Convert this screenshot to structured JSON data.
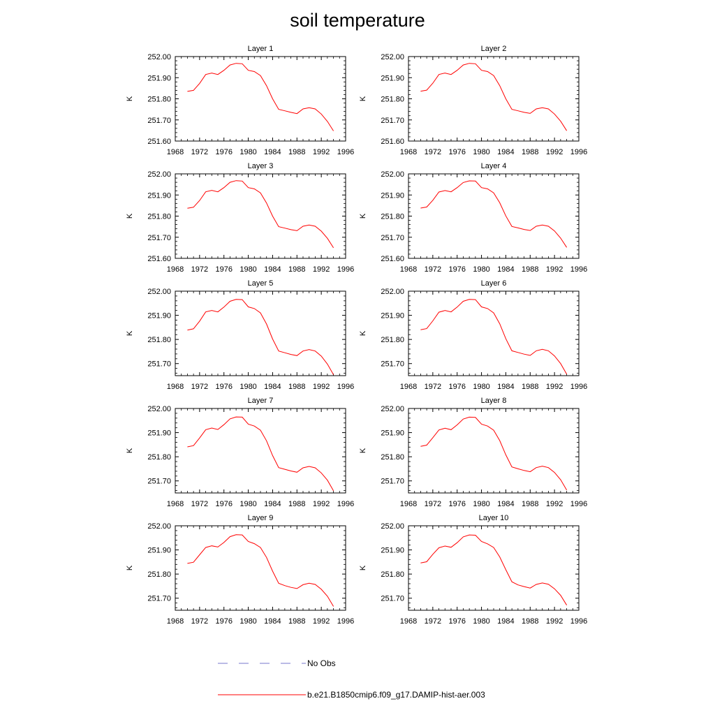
{
  "page": {
    "title": "soil temperature"
  },
  "legend": {
    "items": [
      {
        "label": "No Obs",
        "color": "#7777cc",
        "style": "dashed"
      },
      {
        "label": "b.e21.B1850cmip6.f09_g17.DAMIP-hist-aer.003",
        "color": "#ff0000",
        "style": "solid"
      }
    ]
  },
  "chart_data": [
    {
      "type": "line",
      "title": "Layer 1",
      "ylabel": "K",
      "xlim": [
        1968,
        1996
      ],
      "ylim": [
        251.6,
        252.0
      ],
      "xticks": [
        1968,
        1972,
        1976,
        1980,
        1984,
        1988,
        1992,
        1996
      ],
      "yticks": [
        251.6,
        251.7,
        251.8,
        251.9,
        252.0
      ],
      "ytick_labels": [
        "251.60",
        "251.70",
        "251.80",
        "251.90",
        "252.00"
      ],
      "series": [
        {
          "color": "#ff0000",
          "x": [
            1970,
            1971,
            1972,
            1973,
            1974,
            1975,
            1976,
            1977,
            1978,
            1979,
            1980,
            1981,
            1982,
            1983,
            1984,
            1985,
            1986,
            1987,
            1988,
            1989,
            1990,
            1991,
            1992,
            1993,
            1994
          ],
          "y": [
            251.835,
            251.84,
            251.873,
            251.915,
            251.922,
            251.915,
            251.935,
            251.96,
            251.968,
            251.966,
            251.935,
            251.929,
            251.91,
            251.862,
            251.8,
            251.75,
            251.743,
            251.736,
            251.73,
            251.752,
            251.758,
            251.752,
            251.728,
            251.693,
            251.648
          ]
        }
      ]
    },
    {
      "type": "line",
      "title": "Layer 2",
      "ylabel": "K",
      "xlim": [
        1968,
        1996
      ],
      "ylim": [
        251.6,
        252.0
      ],
      "xticks": [
        1968,
        1972,
        1976,
        1980,
        1984,
        1988,
        1992,
        1996
      ],
      "yticks": [
        251.6,
        251.7,
        251.8,
        251.9,
        252.0
      ],
      "ytick_labels": [
        "251.60",
        "251.70",
        "251.80",
        "251.90",
        "252.00"
      ],
      "series": [
        {
          "color": "#ff0000",
          "x": [
            1970,
            1971,
            1972,
            1973,
            1974,
            1975,
            1976,
            1977,
            1978,
            1979,
            1980,
            1981,
            1982,
            1983,
            1984,
            1985,
            1986,
            1987,
            1988,
            1989,
            1990,
            1991,
            1992,
            1993,
            1994
          ],
          "y": [
            251.836,
            251.841,
            251.874,
            251.915,
            251.922,
            251.915,
            251.935,
            251.96,
            251.968,
            251.966,
            251.935,
            251.929,
            251.91,
            251.862,
            251.8,
            251.75,
            251.743,
            251.736,
            251.731,
            251.752,
            251.758,
            251.752,
            251.728,
            251.694,
            251.649
          ]
        }
      ]
    },
    {
      "type": "line",
      "title": "Layer 3",
      "ylabel": "K",
      "xlim": [
        1968,
        1996
      ],
      "ylim": [
        251.6,
        252.0
      ],
      "xticks": [
        1968,
        1972,
        1976,
        1980,
        1984,
        1988,
        1992,
        1996
      ],
      "yticks": [
        251.6,
        251.7,
        251.8,
        251.9,
        252.0
      ],
      "ytick_labels": [
        "251.60",
        "251.70",
        "251.80",
        "251.90",
        "252.00"
      ],
      "series": [
        {
          "color": "#ff0000",
          "x": [
            1970,
            1971,
            1972,
            1973,
            1974,
            1975,
            1976,
            1977,
            1978,
            1979,
            1980,
            1981,
            1982,
            1983,
            1984,
            1985,
            1986,
            1987,
            1988,
            1989,
            1990,
            1991,
            1992,
            1993,
            1994
          ],
          "y": [
            251.837,
            251.842,
            251.874,
            251.915,
            251.922,
            251.915,
            251.935,
            251.96,
            251.968,
            251.966,
            251.935,
            251.929,
            251.91,
            251.862,
            251.8,
            251.75,
            251.743,
            251.736,
            251.731,
            251.752,
            251.758,
            251.752,
            251.729,
            251.695,
            251.65
          ]
        }
      ]
    },
    {
      "type": "line",
      "title": "Layer 4",
      "ylabel": "K",
      "xlim": [
        1968,
        1996
      ],
      "ylim": [
        251.6,
        252.0
      ],
      "xticks": [
        1968,
        1972,
        1976,
        1980,
        1984,
        1988,
        1992,
        1996
      ],
      "yticks": [
        251.6,
        251.7,
        251.8,
        251.9,
        252.0
      ],
      "ytick_labels": [
        "251.60",
        "251.70",
        "251.80",
        "251.90",
        "252.00"
      ],
      "series": [
        {
          "color": "#ff0000",
          "x": [
            1970,
            1971,
            1972,
            1973,
            1974,
            1975,
            1976,
            1977,
            1978,
            1979,
            1980,
            1981,
            1982,
            1983,
            1984,
            1985,
            1986,
            1987,
            1988,
            1989,
            1990,
            1991,
            1992,
            1993,
            1994
          ],
          "y": [
            251.838,
            251.843,
            251.875,
            251.914,
            251.921,
            251.915,
            251.935,
            251.959,
            251.967,
            251.966,
            251.935,
            251.929,
            251.91,
            251.863,
            251.801,
            251.751,
            251.744,
            251.737,
            251.732,
            251.752,
            251.758,
            251.752,
            251.73,
            251.696,
            251.652
          ]
        }
      ]
    },
    {
      "type": "line",
      "title": "Layer 5",
      "ylabel": "K",
      "xlim": [
        1968,
        1996
      ],
      "ylim": [
        251.65,
        252.0
      ],
      "xticks": [
        1968,
        1972,
        1976,
        1980,
        1984,
        1988,
        1992,
        1996
      ],
      "yticks": [
        251.7,
        251.8,
        251.9,
        252.0
      ],
      "ytick_labels": [
        "251.70",
        "251.80",
        "251.90",
        "252.00"
      ],
      "series": [
        {
          "color": "#ff0000",
          "x": [
            1970,
            1971,
            1972,
            1973,
            1974,
            1975,
            1976,
            1977,
            1978,
            1979,
            1980,
            1981,
            1982,
            1983,
            1984,
            1985,
            1986,
            1987,
            1988,
            1989,
            1990,
            1991,
            1992,
            1993,
            1994
          ],
          "y": [
            251.839,
            251.844,
            251.876,
            251.914,
            251.92,
            251.914,
            251.934,
            251.958,
            251.966,
            251.965,
            251.935,
            251.928,
            251.91,
            251.864,
            251.802,
            251.752,
            251.745,
            251.738,
            251.733,
            251.752,
            251.758,
            251.752,
            251.731,
            251.698,
            251.654
          ]
        }
      ]
    },
    {
      "type": "line",
      "title": "Layer 6",
      "ylabel": "K",
      "xlim": [
        1968,
        1996
      ],
      "ylim": [
        251.65,
        252.0
      ],
      "xticks": [
        1968,
        1972,
        1976,
        1980,
        1984,
        1988,
        1992,
        1996
      ],
      "yticks": [
        251.7,
        251.8,
        251.9,
        252.0
      ],
      "ytick_labels": [
        "251.70",
        "251.80",
        "251.90",
        "252.00"
      ],
      "series": [
        {
          "color": "#ff0000",
          "x": [
            1970,
            1971,
            1972,
            1973,
            1974,
            1975,
            1976,
            1977,
            1978,
            1979,
            1980,
            1981,
            1982,
            1983,
            1984,
            1985,
            1986,
            1987,
            1988,
            1989,
            1990,
            1991,
            1992,
            1993,
            1994
          ],
          "y": [
            251.84,
            251.845,
            251.877,
            251.913,
            251.92,
            251.914,
            251.934,
            251.958,
            251.966,
            251.965,
            251.935,
            251.928,
            251.91,
            251.865,
            251.803,
            251.753,
            251.746,
            251.739,
            251.734,
            251.753,
            251.759,
            251.753,
            251.732,
            251.7,
            251.656
          ]
        }
      ]
    },
    {
      "type": "line",
      "title": "Layer 7",
      "ylabel": "K",
      "xlim": [
        1968,
        1996
      ],
      "ylim": [
        251.65,
        252.0
      ],
      "xticks": [
        1968,
        1972,
        1976,
        1980,
        1984,
        1988,
        1992,
        1996
      ],
      "yticks": [
        251.7,
        251.8,
        251.9,
        252.0
      ],
      "ytick_labels": [
        "251.70",
        "251.80",
        "251.90",
        "252.00"
      ],
      "series": [
        {
          "color": "#ff0000",
          "x": [
            1970,
            1971,
            1972,
            1973,
            1974,
            1975,
            1976,
            1977,
            1978,
            1979,
            1980,
            1981,
            1982,
            1983,
            1984,
            1985,
            1986,
            1987,
            1988,
            1989,
            1990,
            1991,
            1992,
            1993,
            1994
          ],
          "y": [
            251.841,
            251.846,
            251.878,
            251.912,
            251.919,
            251.913,
            251.933,
            251.957,
            251.965,
            251.964,
            251.935,
            251.927,
            251.91,
            251.866,
            251.805,
            251.755,
            251.748,
            251.741,
            251.736,
            251.754,
            251.76,
            251.754,
            251.733,
            251.703,
            251.659
          ]
        }
      ]
    },
    {
      "type": "line",
      "title": "Layer 8",
      "ylabel": "K",
      "xlim": [
        1968,
        1996
      ],
      "ylim": [
        251.65,
        252.0
      ],
      "xticks": [
        1968,
        1972,
        1976,
        1980,
        1984,
        1988,
        1992,
        1996
      ],
      "yticks": [
        251.7,
        251.8,
        251.9,
        252.0
      ],
      "ytick_labels": [
        "251.70",
        "251.80",
        "251.90",
        "252.00"
      ],
      "series": [
        {
          "color": "#ff0000",
          "x": [
            1970,
            1971,
            1972,
            1973,
            1974,
            1975,
            1976,
            1977,
            1978,
            1979,
            1980,
            1981,
            1982,
            1983,
            1984,
            1985,
            1986,
            1987,
            1988,
            1989,
            1990,
            1991,
            1992,
            1993,
            1994
          ],
          "y": [
            251.843,
            251.848,
            251.879,
            251.911,
            251.918,
            251.912,
            251.932,
            251.956,
            251.964,
            251.963,
            251.935,
            251.927,
            251.91,
            251.867,
            251.808,
            251.758,
            251.75,
            251.743,
            251.738,
            251.755,
            251.761,
            251.755,
            251.735,
            251.705,
            251.662
          ]
        }
      ]
    },
    {
      "type": "line",
      "title": "Layer 9",
      "ylabel": "K",
      "xlim": [
        1968,
        1996
      ],
      "ylim": [
        251.65,
        252.0
      ],
      "xticks": [
        1968,
        1972,
        1976,
        1980,
        1984,
        1988,
        1992,
        1996
      ],
      "yticks": [
        251.7,
        251.8,
        251.9,
        252.0
      ],
      "ytick_labels": [
        "251.70",
        "251.80",
        "251.90",
        "252.00"
      ],
      "series": [
        {
          "color": "#ff0000",
          "x": [
            1970,
            1971,
            1972,
            1973,
            1974,
            1975,
            1976,
            1977,
            1978,
            1979,
            1980,
            1981,
            1982,
            1983,
            1984,
            1985,
            1986,
            1987,
            1988,
            1989,
            1990,
            1991,
            1992,
            1993,
            1994
          ],
          "y": [
            251.844,
            251.849,
            251.88,
            251.91,
            251.917,
            251.912,
            251.931,
            251.955,
            251.963,
            251.962,
            251.935,
            251.926,
            251.91,
            251.869,
            251.812,
            251.762,
            251.752,
            251.745,
            251.74,
            251.756,
            251.762,
            251.757,
            251.737,
            251.708,
            251.666
          ]
        }
      ]
    },
    {
      "type": "line",
      "title": "Layer 10",
      "ylabel": "K",
      "xlim": [
        1968,
        1996
      ],
      "ylim": [
        251.65,
        252.0
      ],
      "xticks": [
        1968,
        1972,
        1976,
        1980,
        1984,
        1988,
        1992,
        1996
      ],
      "yticks": [
        251.7,
        251.8,
        251.9,
        252.0
      ],
      "ytick_labels": [
        "251.70",
        "251.80",
        "251.90",
        "252.00"
      ],
      "series": [
        {
          "color": "#ff0000",
          "x": [
            1970,
            1971,
            1972,
            1973,
            1974,
            1975,
            1976,
            1977,
            1978,
            1979,
            1980,
            1981,
            1982,
            1983,
            1984,
            1985,
            1986,
            1987,
            1988,
            1989,
            1990,
            1991,
            1992,
            1993,
            1994
          ],
          "y": [
            251.846,
            251.851,
            251.882,
            251.909,
            251.916,
            251.911,
            251.93,
            251.954,
            251.962,
            251.961,
            251.935,
            251.925,
            251.91,
            251.871,
            251.818,
            251.768,
            251.755,
            251.748,
            251.742,
            251.757,
            251.763,
            251.758,
            251.739,
            251.712,
            251.671
          ]
        }
      ]
    }
  ]
}
